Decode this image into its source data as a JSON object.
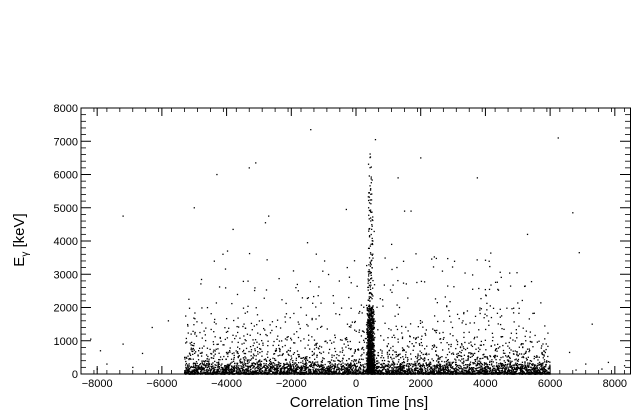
{
  "chart_data": {
    "type": "scatter",
    "title": "",
    "xlabel": "Correlation Time [ns]",
    "ylabel_main": "E",
    "ylabel_sub": "γ",
    "ylabel_unit": " [keV]",
    "xlim": [
      -8500,
      8500
    ],
    "ylim": [
      0,
      8000
    ],
    "x_ticks": [
      -8000,
      -6000,
      -4000,
      -2000,
      0,
      2000,
      4000,
      6000,
      8000
    ],
    "x_tick_labels": [
      "−8000",
      "−6000",
      "−4000",
      "−2000",
      "0",
      "2000",
      "4000",
      "6000",
      "8000"
    ],
    "y_ticks": [
      0,
      1000,
      2000,
      3000,
      4000,
      5000,
      6000,
      7000,
      8000
    ],
    "y_tick_labels": [
      "0",
      "1000",
      "2000",
      "3000",
      "4000",
      "5000",
      "6000",
      "7000",
      "8000"
    ],
    "grid": false,
    "marker_color": "#000000",
    "features": {
      "prompt_peak_x": 450,
      "dense_band_x": [
        -5300,
        6000
      ],
      "dense_band_y_max": 2500
    },
    "isolated_points": [
      {
        "x": -1400,
        "y": 7350
      },
      {
        "x": 6250,
        "y": 7100
      },
      {
        "x": 2000,
        "y": 6500
      },
      {
        "x": -3100,
        "y": 6350
      },
      {
        "x": -3300,
        "y": 6200
      },
      {
        "x": -4300,
        "y": 6000
      },
      {
        "x": 1300,
        "y": 5900
      },
      {
        "x": 3750,
        "y": 5900
      },
      {
        "x": -5000,
        "y": 5000
      },
      {
        "x": -300,
        "y": 4950
      },
      {
        "x": 1500,
        "y": 4900
      },
      {
        "x": 1700,
        "y": 4900
      },
      {
        "x": 6700,
        "y": 4850
      },
      {
        "x": -7200,
        "y": 4750
      },
      {
        "x": -2700,
        "y": 4750
      },
      {
        "x": -2800,
        "y": 4550
      },
      {
        "x": -3800,
        "y": 4350
      },
      {
        "x": 5300,
        "y": 4200
      },
      {
        "x": -1500,
        "y": 3950
      },
      {
        "x": 1100,
        "y": 3900
      },
      {
        "x": 6900,
        "y": 3650
      },
      {
        "x": 600,
        "y": 7050
      }
    ],
    "sparse_points": [
      {
        "x": -8200,
        "y": 1050
      },
      {
        "x": -7900,
        "y": 700
      },
      {
        "x": -7200,
        "y": 900
      },
      {
        "x": -6600,
        "y": 620
      },
      {
        "x": -6300,
        "y": 1400
      },
      {
        "x": -5800,
        "y": 1600
      },
      {
        "x": -7700,
        "y": 300
      },
      {
        "x": -6900,
        "y": 200
      },
      {
        "x": 6600,
        "y": 650
      },
      {
        "x": 7100,
        "y": 300
      },
      {
        "x": 7300,
        "y": 1500
      },
      {
        "x": 7800,
        "y": 350
      },
      {
        "x": 8300,
        "y": 250
      },
      {
        "x": 6800,
        "y": 120
      },
      {
        "x": -8000,
        "y": 150
      },
      {
        "x": 7600,
        "y": 150
      }
    ]
  }
}
